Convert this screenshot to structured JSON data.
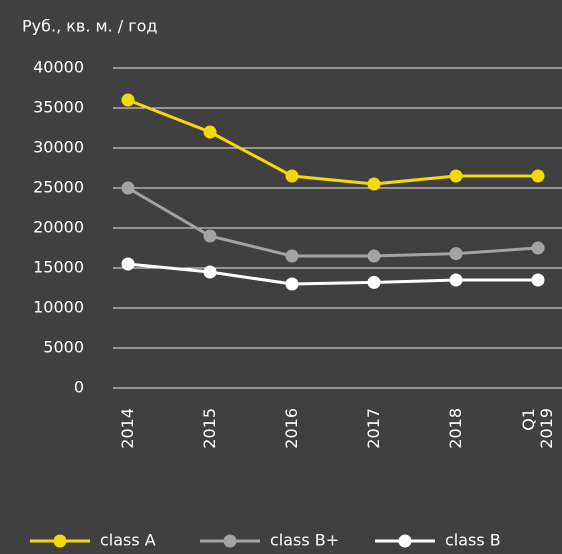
{
  "chart_data": {
    "type": "line",
    "y_axis_label": "Руб., кв. м. / год",
    "categories": [
      "2014",
      "2015",
      "2016",
      "2017",
      "2018",
      "Q1 2019"
    ],
    "series": [
      {
        "name": "class A",
        "color": "#f5d80c",
        "values": [
          36000,
          32000,
          26500,
          25500,
          26500,
          26500
        ]
      },
      {
        "name": "class B+",
        "color": "#a3a3a3",
        "values": [
          25000,
          19000,
          16500,
          16500,
          16800,
          17500
        ]
      },
      {
        "name": "class B",
        "color": "#ffffff",
        "values": [
          15500,
          14500,
          13000,
          13200,
          13500,
          13500
        ]
      }
    ],
    "ylim": [
      0,
      40000
    ],
    "yticks": [
      0,
      5000,
      10000,
      15000,
      20000,
      25000,
      30000,
      35000,
      40000
    ],
    "grid": true,
    "legend": "bottom"
  }
}
